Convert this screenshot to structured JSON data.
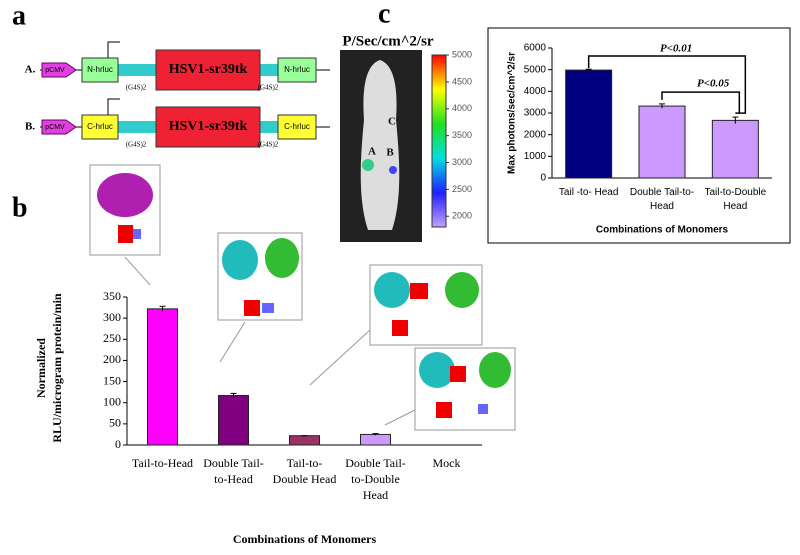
{
  "panel_labels": [
    "a",
    "b",
    "c"
  ],
  "constructs": [
    {
      "label": "A.",
      "promoter": "pCMV",
      "left": "N-hrluc",
      "center": "HSV1-sr39tk",
      "right": "N-hrluc",
      "linker": "(G4S)2"
    },
    {
      "label": "B.",
      "promoter": "pCMV",
      "left": "C-hrluc",
      "center": "HSV1-sr39tk",
      "right": "C-hrluc",
      "linker": "(G4S)2"
    }
  ],
  "image": {
    "title": "P/Sec/cm^2/sr",
    "regions": [
      "A",
      "B",
      "C"
    ],
    "colorbar_lim": [
      1800,
      5000
    ],
    "colorbar_ticks": [
      5000,
      4500,
      4000,
      3500,
      3000,
      2500,
      2000
    ]
  },
  "chart_data": [
    {
      "type": "bar",
      "categories": [
        "Tail-to-Head",
        "Double Tail-to-Head",
        "Tail-to-Double Head",
        "Double Tail-to-Double Head",
        "Mock"
      ],
      "values": [
        322,
        117,
        22,
        25,
        0
      ],
      "errors": [
        6,
        5,
        0,
        2,
        0
      ],
      "colors": [
        "#ff00ff",
        "#800080",
        "#993366",
        "#cc99ff",
        "#cc99ff"
      ],
      "ylim": [
        0,
        350
      ],
      "yticks": [
        0,
        50,
        100,
        150,
        200,
        250,
        300,
        350
      ],
      "ylabel": [
        "Normalized",
        "RLU/microgram protein/min"
      ],
      "xlabel": "Combinations of Monomers"
    },
    {
      "type": "bar",
      "categories": [
        "Tail -to- Head",
        "Double Tail-to-Head",
        "Tail-to-Double Head"
      ],
      "values": [
        4980,
        3320,
        2660
      ],
      "errors": [
        40,
        100,
        150
      ],
      "colors": [
        "#000080",
        "#cc99ff",
        "#cc99ff"
      ],
      "ylim": [
        0,
        6000
      ],
      "yticks": [
        0,
        1000,
        2000,
        3000,
        4000,
        5000,
        6000
      ],
      "ylabel": "Max photons/sec/cm^2/sr",
      "xlabel": "Combinations of Monomers",
      "annotations": [
        "P<0.01",
        "P<0.05"
      ]
    }
  ]
}
